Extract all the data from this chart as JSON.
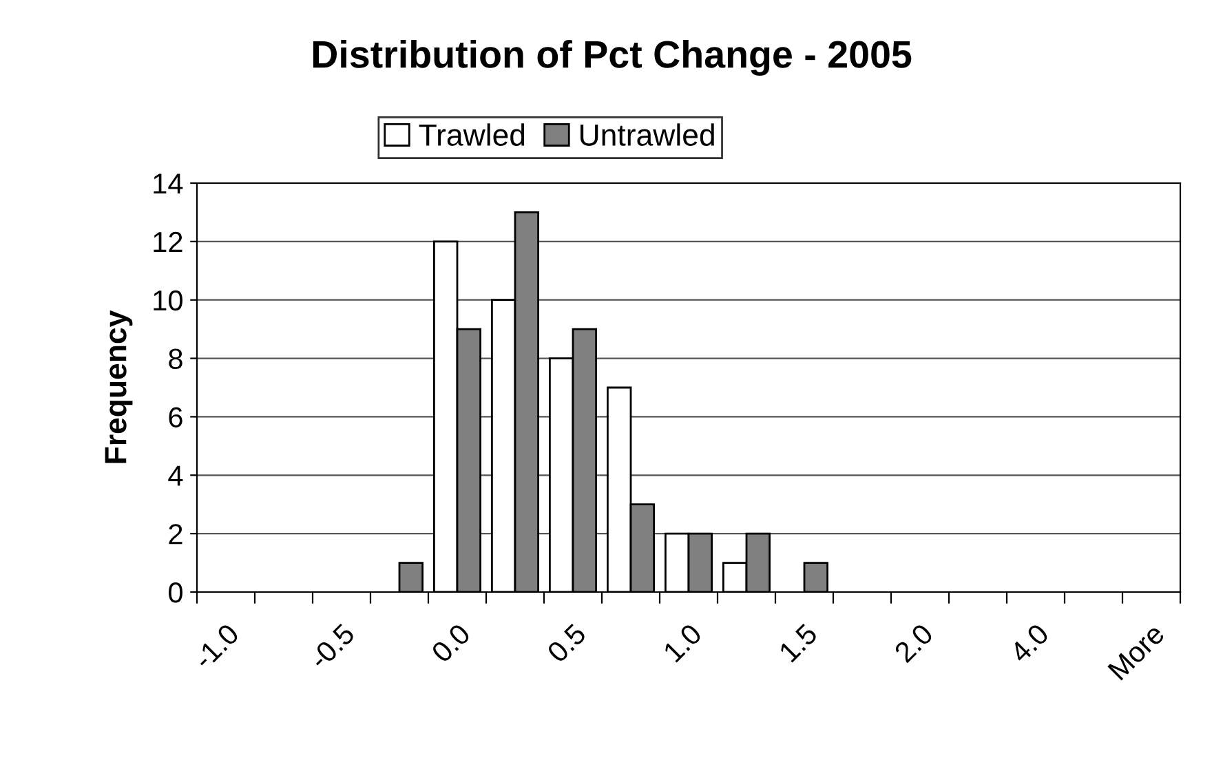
{
  "chart_data": {
    "type": "bar",
    "title": "Distribution of Pct Change - 2005",
    "ylabel": "Frequency",
    "categories": [
      "-1.0",
      null,
      "-0.5",
      null,
      "0.0",
      null,
      "0.5",
      null,
      "1.0",
      null,
      "1.5",
      null,
      "2.0",
      null,
      "4.0",
      null,
      "More"
    ],
    "series": [
      {
        "name": "Trawled",
        "color": "#ffffff",
        "values": [
          0,
          0,
          0,
          0,
          12,
          10,
          8,
          7,
          2,
          1,
          0,
          0,
          0,
          0,
          0,
          0,
          0
        ]
      },
      {
        "name": "Untrawled",
        "color": "#808080",
        "values": [
          0,
          0,
          0,
          1,
          9,
          13,
          9,
          3,
          2,
          2,
          1,
          0,
          0,
          0,
          0,
          0,
          0
        ]
      }
    ],
    "ylim": [
      0,
      14
    ],
    "yticks": [
      0,
      2,
      4,
      6,
      8,
      10,
      12,
      14
    ],
    "grid": "y",
    "legend": "top"
  }
}
